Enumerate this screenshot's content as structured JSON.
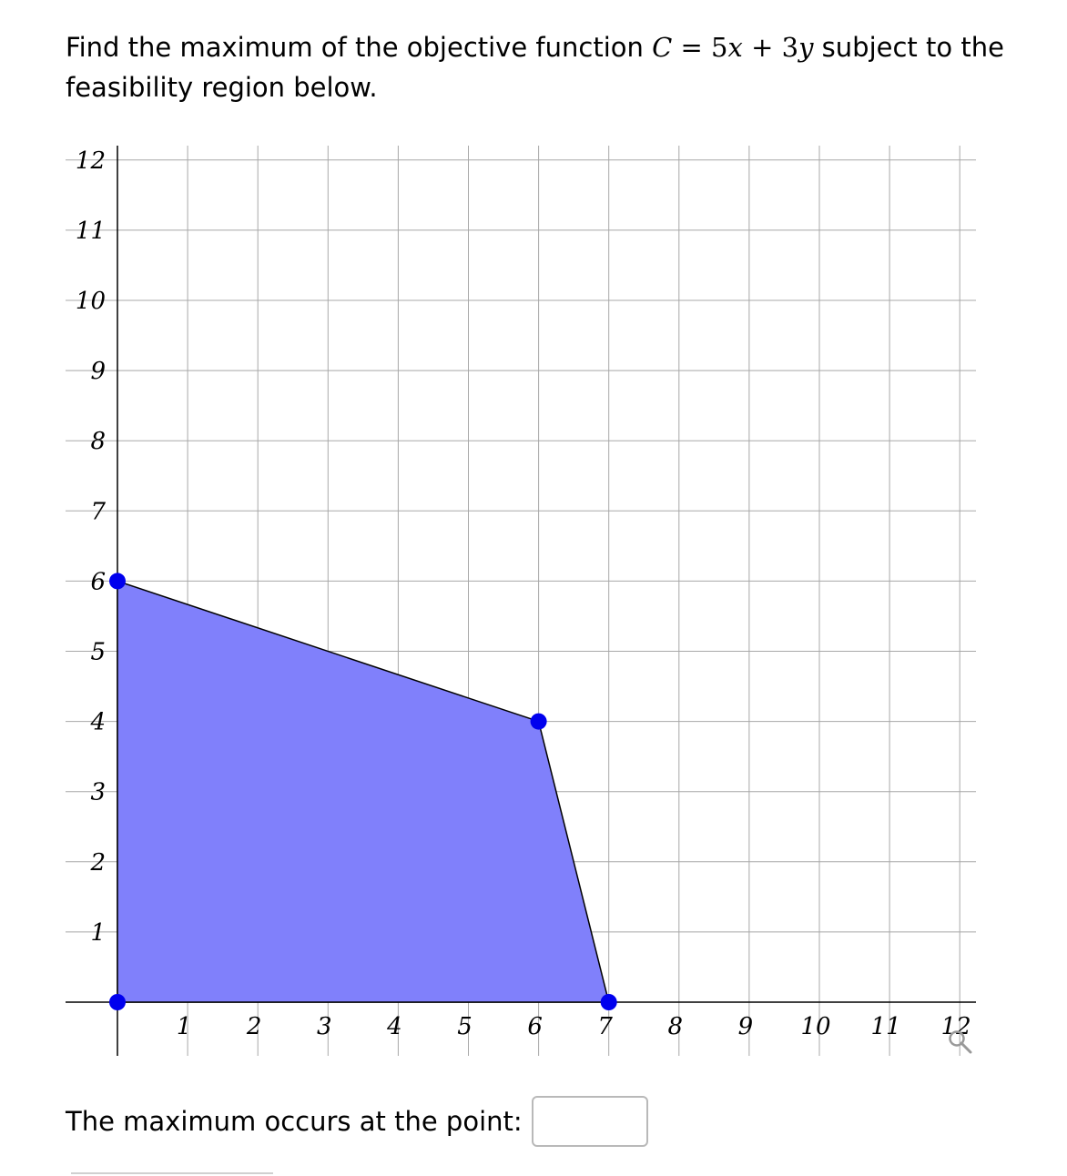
{
  "question": {
    "text_before": "Find the maximum of the objective function",
    "equation": {
      "lhs": "C",
      "eq": "=",
      "a": "5",
      "v1": "x",
      "plus": "+",
      "b": "3",
      "v2": "y"
    },
    "text_after": "subject to the feasibility region below."
  },
  "chart_data": {
    "type": "feasibility-region",
    "x_ticks": [
      "1",
      "2",
      "3",
      "4",
      "5",
      "6",
      "7",
      "8",
      "9",
      "10",
      "11",
      "12"
    ],
    "y_ticks": [
      "1",
      "2",
      "3",
      "4",
      "5",
      "6",
      "7",
      "8",
      "9",
      "10",
      "11",
      "12"
    ],
    "xlim": [
      0,
      12
    ],
    "ylim": [
      0,
      12
    ],
    "grid": true,
    "region_vertices": [
      [
        0,
        0
      ],
      [
        0,
        6
      ],
      [
        6,
        4
      ],
      [
        7,
        0
      ]
    ],
    "region_color": "#8080fb",
    "vertex_color": "#0000ee"
  },
  "answer": {
    "label": "The maximum occurs at the point:",
    "value": ""
  },
  "icons": {
    "zoom": "magnifier-icon"
  }
}
